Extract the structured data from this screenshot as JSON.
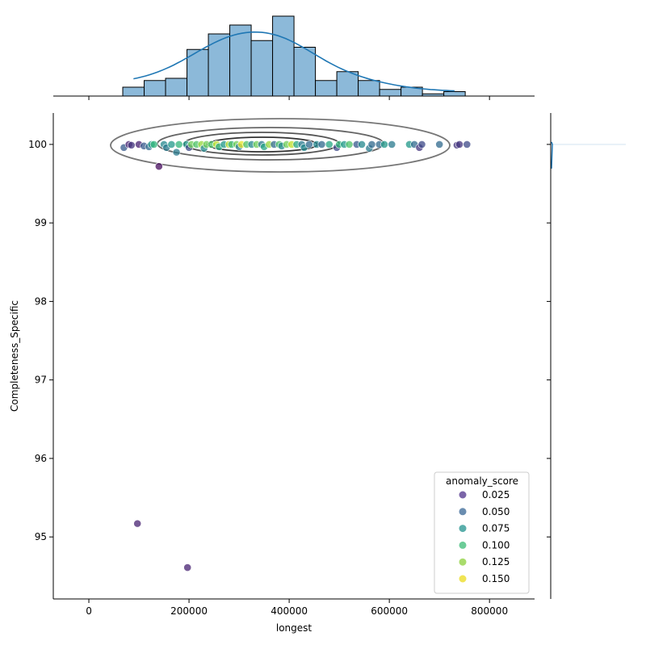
{
  "chart_data": {
    "type": "scatter",
    "kind": "jointplot",
    "xlabel": "longest",
    "ylabel": "Completeness_Specific",
    "xlim": [
      -71000,
      890000
    ],
    "ylim": [
      94.21,
      100.4
    ],
    "x_ticks": [
      0,
      200000,
      400000,
      600000,
      800000
    ],
    "x_tick_labels": [
      "0",
      "200000",
      "400000",
      "600000",
      "800000"
    ],
    "y_ticks": [
      95,
      96,
      97,
      98,
      99,
      100
    ],
    "y_tick_labels": [
      "95",
      "96",
      "97",
      "98",
      "99",
      "100"
    ],
    "grid": false,
    "hue": "anomaly_score",
    "palette": "viridis",
    "legend": {
      "title": "anomaly_score",
      "placement": "lower-right",
      "entries": [
        {
          "label": "0.025",
          "color": "#7b65a8"
        },
        {
          "label": "0.050",
          "color": "#6a8db0"
        },
        {
          "label": "0.075",
          "color": "#5aaeab"
        },
        {
          "label": "0.100",
          "color": "#6ccc98"
        },
        {
          "label": "0.125",
          "color": "#a9dc6c"
        },
        {
          "label": "0.150",
          "color": "#f0e454"
        }
      ]
    },
    "points": [
      [
        70000,
        99.96,
        0.05
      ],
      [
        80000,
        100,
        0.02
      ],
      [
        85000,
        99.99,
        0.03
      ],
      [
        100000,
        100,
        0.02
      ],
      [
        110000,
        99.98,
        0.05
      ],
      [
        120000,
        99.97,
        0.06
      ],
      [
        125000,
        100,
        0.09
      ],
      [
        130000,
        100,
        0.11
      ],
      [
        140000,
        99.72,
        0.01
      ],
      [
        150000,
        100,
        0.08
      ],
      [
        155000,
        99.96,
        0.07
      ],
      [
        165000,
        100,
        0.09
      ],
      [
        175000,
        99.9,
        0.07
      ],
      [
        180000,
        100,
        0.11
      ],
      [
        195000,
        100,
        0.09
      ],
      [
        200000,
        99.96,
        0.04
      ],
      [
        205000,
        100,
        0.13
      ],
      [
        215000,
        100,
        0.12
      ],
      [
        225000,
        100,
        0.14
      ],
      [
        230000,
        99.95,
        0.08
      ],
      [
        235000,
        100,
        0.13
      ],
      [
        245000,
        100,
        0.12
      ],
      [
        255000,
        100,
        0.15
      ],
      [
        260000,
        99.97,
        0.1
      ],
      [
        270000,
        100,
        0.09
      ],
      [
        280000,
        100,
        0.15
      ],
      [
        285000,
        100,
        0.11
      ],
      [
        295000,
        100,
        0.13
      ],
      [
        300000,
        99.97,
        0.07
      ],
      [
        305000,
        100,
        0.16
      ],
      [
        315000,
        100,
        0.12
      ],
      [
        325000,
        100,
        0.08
      ],
      [
        335000,
        100,
        0.13
      ],
      [
        345000,
        100,
        0.07
      ],
      [
        350000,
        99.97,
        0.1
      ],
      [
        360000,
        100,
        0.14
      ],
      [
        370000,
        100,
        0.06
      ],
      [
        380000,
        100,
        0.12
      ],
      [
        385000,
        99.98,
        0.08
      ],
      [
        395000,
        100,
        0.13
      ],
      [
        405000,
        100,
        0.15
      ],
      [
        415000,
        100,
        0.1
      ],
      [
        425000,
        100,
        0.07
      ],
      [
        430000,
        99.96,
        0.08
      ],
      [
        440000,
        100,
        0.06
      ],
      [
        455000,
        100,
        0.08
      ],
      [
        465000,
        100,
        0.06
      ],
      [
        480000,
        100,
        0.1
      ],
      [
        495000,
        99.96,
        0.04
      ],
      [
        500000,
        100,
        0.11
      ],
      [
        510000,
        100,
        0.09
      ],
      [
        520000,
        100,
        0.12
      ],
      [
        535000,
        100,
        0.05
      ],
      [
        545000,
        100,
        0.08
      ],
      [
        560000,
        99.95,
        0.07
      ],
      [
        565000,
        100,
        0.06
      ],
      [
        580000,
        100,
        0.06
      ],
      [
        590000,
        100,
        0.09
      ],
      [
        605000,
        100,
        0.07
      ],
      [
        640000,
        100,
        0.09
      ],
      [
        650000,
        100,
        0.06
      ],
      [
        660000,
        99.96,
        0.03
      ],
      [
        665000,
        100,
        0.04
      ],
      [
        700000,
        100,
        0.06
      ],
      [
        735000,
        99.99,
        0.03
      ],
      [
        740000,
        100,
        0.03
      ],
      [
        755000,
        100,
        0.04
      ],
      [
        97000,
        95.17,
        0.02
      ],
      [
        197000,
        94.61,
        0.02
      ]
    ],
    "marginal_x_histogram": {
      "bin_start": 67700,
      "bin_width": 42740,
      "counts": [
        4,
        7,
        8,
        21,
        28,
        32,
        25,
        36,
        22,
        7,
        11,
        7,
        3,
        4,
        1,
        2
      ],
      "color": "#1f77b4",
      "kde": true
    },
    "marginal_y_histogram": {
      "note_color": "#1f77b4"
    },
    "kde_contours": {
      "levels": 4,
      "color": "#555555"
    }
  }
}
